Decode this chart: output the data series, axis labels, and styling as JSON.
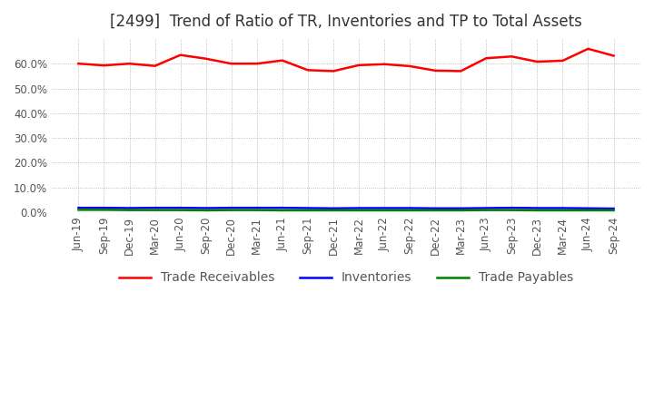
{
  "title": "[2499]  Trend of Ratio of TR, Inventories and TP to Total Assets",
  "x_labels": [
    "Jun-19",
    "Sep-19",
    "Dec-19",
    "Mar-20",
    "Jun-20",
    "Sep-20",
    "Dec-20",
    "Mar-21",
    "Jun-21",
    "Sep-21",
    "Dec-21",
    "Mar-22",
    "Jun-22",
    "Sep-22",
    "Dec-22",
    "Mar-23",
    "Jun-23",
    "Sep-23",
    "Dec-23",
    "Mar-24",
    "Jun-24",
    "Sep-24"
  ],
  "trade_receivables": [
    0.6,
    0.593,
    0.6,
    0.591,
    0.635,
    0.62,
    0.6,
    0.6,
    0.613,
    0.574,
    0.57,
    0.594,
    0.598,
    0.59,
    0.572,
    0.57,
    0.622,
    0.629,
    0.608,
    0.612,
    0.66,
    0.632
  ],
  "inventories": [
    0.018,
    0.018,
    0.017,
    0.018,
    0.018,
    0.017,
    0.018,
    0.018,
    0.018,
    0.017,
    0.016,
    0.017,
    0.017,
    0.017,
    0.016,
    0.016,
    0.017,
    0.018,
    0.017,
    0.017,
    0.016,
    0.015
  ],
  "trade_payables": [
    0.01,
    0.01,
    0.009,
    0.009,
    0.009,
    0.008,
    0.009,
    0.009,
    0.008,
    0.008,
    0.008,
    0.008,
    0.008,
    0.008,
    0.008,
    0.008,
    0.009,
    0.009,
    0.008,
    0.008,
    0.008,
    0.008
  ],
  "tr_color": "#ff0000",
  "inv_color": "#0000ff",
  "tp_color": "#008000",
  "background_color": "#ffffff",
  "grid_color": "#aaaaaa",
  "ylim": [
    0.0,
    0.7
  ],
  "yticks": [
    0.0,
    0.1,
    0.2,
    0.3,
    0.4,
    0.5,
    0.6
  ],
  "legend_labels": [
    "Trade Receivables",
    "Inventories",
    "Trade Payables"
  ],
  "title_fontsize": 12,
  "tick_fontsize": 8.5,
  "legend_fontsize": 10
}
